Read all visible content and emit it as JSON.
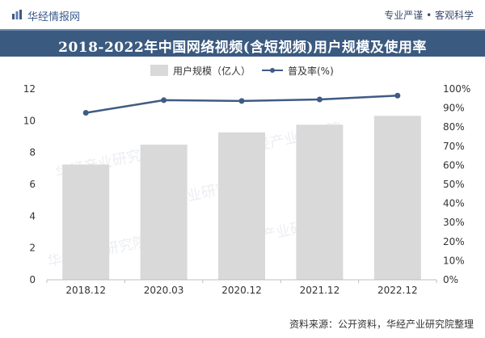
{
  "header": {
    "brand": "华经情报网",
    "slogan": "专业严谨 • 客观科学"
  },
  "footer": {
    "source": "资料来源：公开资料，华经产业研究院整理",
    "watermark": "华经产业研究院"
  },
  "colors": {
    "bar": "#d9d9d9",
    "line": "#3f5b84",
    "title_bg": "#3b5a80"
  },
  "chart_data": {
    "type": "bar+line",
    "title": "2018-2022年中国网络视频(含短视频)用户规模及使用率",
    "categories": [
      "2018.12",
      "2020.03",
      "2020.12",
      "2021.12",
      "2022.12"
    ],
    "series": [
      {
        "name": "用户规模（亿人）",
        "type": "bar",
        "axis": "left",
        "values": [
          7.25,
          8.5,
          9.27,
          9.75,
          10.31
        ]
      },
      {
        "name": "普及率(%)",
        "type": "line",
        "axis": "right",
        "values": [
          87.5,
          94.1,
          93.7,
          94.5,
          96.5
        ]
      }
    ],
    "y_left": {
      "min": 0,
      "max": 12,
      "ticks": [
        0,
        2,
        4,
        6,
        8,
        10,
        12
      ]
    },
    "y_right": {
      "min": 0,
      "max": 100,
      "ticks": [
        "0%",
        "10%",
        "20%",
        "30%",
        "40%",
        "50%",
        "60%",
        "70%",
        "80%",
        "90%",
        "100%"
      ]
    },
    "legend_position": "top",
    "grid": false
  }
}
